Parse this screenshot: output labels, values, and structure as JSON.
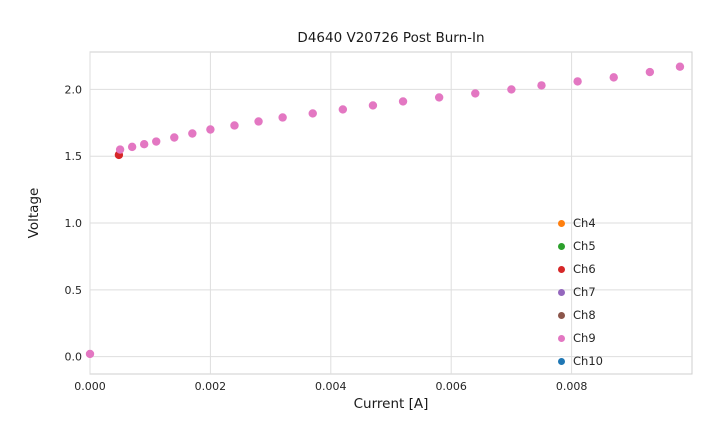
{
  "chart_data": {
    "type": "scatter",
    "title": "D4640 V20726 Post Burn-In",
    "xlabel": "Current [A]",
    "ylabel": "Voltage",
    "xlim": [
      0,
      0.01
    ],
    "ylim": [
      -0.13,
      2.28
    ],
    "xticks": [
      0,
      0.002,
      0.004,
      0.006,
      0.008
    ],
    "xtick_labels": [
      "0.000",
      "0.002",
      "0.004",
      "0.006",
      "0.008"
    ],
    "yticks": [
      0,
      0.5,
      1.0,
      1.5,
      2.0
    ],
    "ytick_labels": [
      "0.0",
      "0.5",
      "1.0",
      "1.5",
      "2.0"
    ],
    "grid": true,
    "legend_position": "lower right",
    "series": [
      {
        "name": "Ch4",
        "color": "#ff7f0e",
        "points": []
      },
      {
        "name": "Ch5",
        "color": "#2ca02c",
        "points": []
      },
      {
        "name": "Ch6",
        "color": "#d62728",
        "points": [
          [
            0.00048,
            1.51
          ]
        ]
      },
      {
        "name": "Ch7",
        "color": "#9467bd",
        "points": []
      },
      {
        "name": "Ch8",
        "color": "#8c564b",
        "points": []
      },
      {
        "name": "Ch9",
        "color": "#e377c2",
        "points": [
          [
            0.0,
            0.02
          ],
          [
            0.0005,
            1.55
          ],
          [
            0.0007,
            1.57
          ],
          [
            0.0009,
            1.59
          ],
          [
            0.0011,
            1.61
          ],
          [
            0.0014,
            1.64
          ],
          [
            0.0017,
            1.67
          ],
          [
            0.002,
            1.7
          ],
          [
            0.0024,
            1.73
          ],
          [
            0.0028,
            1.76
          ],
          [
            0.0032,
            1.79
          ],
          [
            0.0037,
            1.82
          ],
          [
            0.0042,
            1.85
          ],
          [
            0.0047,
            1.88
          ],
          [
            0.0052,
            1.91
          ],
          [
            0.0058,
            1.94
          ],
          [
            0.0064,
            1.97
          ],
          [
            0.007,
            2.0
          ],
          [
            0.0075,
            2.03
          ],
          [
            0.0081,
            2.06
          ],
          [
            0.0087,
            2.09
          ],
          [
            0.0093,
            2.13
          ],
          [
            0.0098,
            2.17
          ]
        ]
      },
      {
        "name": "Ch10",
        "color": "#1f77b4",
        "points": []
      }
    ]
  }
}
